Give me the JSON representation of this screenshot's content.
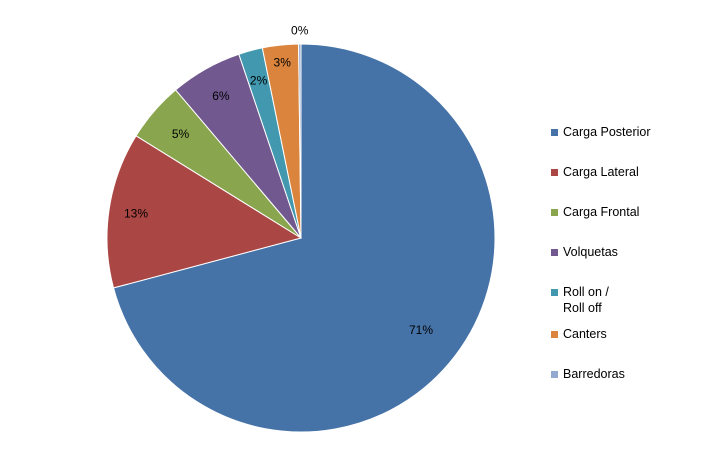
{
  "chart_data": {
    "type": "pie",
    "title": "",
    "slices": [
      {
        "name": "Carga Posterior",
        "value": 71,
        "label": "71%",
        "color": "#4572A7"
      },
      {
        "name": "Carga Lateral",
        "value": 13,
        "label": "13%",
        "color": "#AA4643"
      },
      {
        "name": "Carga Frontal",
        "value": 5,
        "label": "5%",
        "color": "#89A54E"
      },
      {
        "name": "Volquetas",
        "value": 6,
        "label": "6%",
        "color": "#71588F"
      },
      {
        "name": "Roll on /\nRoll off",
        "value": 2,
        "label": "2%",
        "color": "#4198AF"
      },
      {
        "name": "Canters",
        "value": 3,
        "label": "3%",
        "color": "#DB843D"
      },
      {
        "name": "Barredoras",
        "value": 0.2,
        "label": "0%",
        "color": "#93A9CF"
      }
    ],
    "legend_position": "right"
  }
}
